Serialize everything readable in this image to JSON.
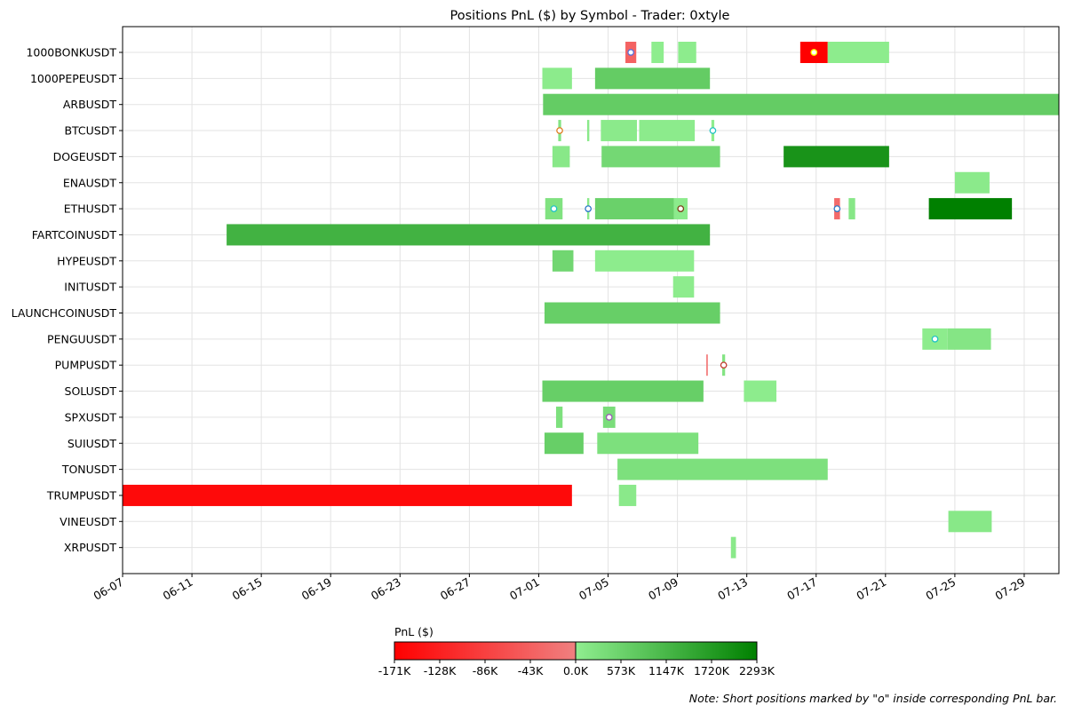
{
  "chart_data": {
    "type": "gantt-heatmap",
    "title": "Positions PnL ($) by Symbol - Trader: 0xtyle",
    "x_axis": {
      "type": "date",
      "range": [
        "2025-06-07",
        "2025-07-31"
      ],
      "tick_labels": [
        "06-07",
        "06-11",
        "06-15",
        "06-19",
        "06-23",
        "06-27",
        "07-01",
        "07-05",
        "07-09",
        "07-13",
        "07-17",
        "07-21",
        "07-25",
        "07-29"
      ],
      "grid": true
    },
    "categories": [
      "1000BONKUSDT",
      "1000PEPEUSDT",
      "ARBUSDT",
      "BTCUSDT",
      "DOGEUSDT",
      "ENAUSDT",
      "ETHUSDT",
      "FARTCOINUSDT",
      "HYPEUSDT",
      "INITUSDT",
      "LAUNCHCOINUSDT",
      "PENGUUSDT",
      "PUMPUSDT",
      "SOLUSDT",
      "SPXUSDT",
      "SUIUSDT",
      "TONUSDT",
      "TRUMPUSDT",
      "VINEUSDT",
      "XRPUSDT"
    ],
    "colorbar": {
      "label": "PnL ($)",
      "tick_labels": [
        "-171K",
        "-128K",
        "-86K",
        "-43K",
        "0.0K",
        "573K",
        "1147K",
        "1720K",
        "2293K"
      ],
      "neg_colors": [
        "#ff0000",
        "#f08080"
      ],
      "pos_colors": [
        "#90ee90",
        "#008000"
      ]
    },
    "positions": [
      {
        "symbol": "1000BONKUSDT",
        "start": "2025-07-06 00:00",
        "end": "2025-07-06 15:00",
        "pnl": -40000,
        "short": true,
        "marker": "#5b6fd6"
      },
      {
        "symbol": "1000BONKUSDT",
        "start": "2025-07-07 12:00",
        "end": "2025-07-08 05:00",
        "pnl": 30000
      },
      {
        "symbol": "1000BONKUSDT",
        "start": "2025-07-09 01:00",
        "end": "2025-07-10 02:00",
        "pnl": 40000
      },
      {
        "symbol": "1000BONKUSDT",
        "start": "2025-07-16 02:00",
        "end": "2025-07-17 16:00",
        "pnl": -171000,
        "short": true,
        "marker": "#ffff00"
      },
      {
        "symbol": "1000BONKUSDT",
        "start": "2025-07-17 16:00",
        "end": "2025-07-21 05:00",
        "pnl": 50000
      },
      {
        "symbol": "1000PEPEUSDT",
        "start": "2025-07-01 05:00",
        "end": "2025-07-02 22:00",
        "pnl": 60000
      },
      {
        "symbol": "1000PEPEUSDT",
        "start": "2025-07-04 06:00",
        "end": "2025-07-10 21:00",
        "pnl": 700000
      },
      {
        "symbol": "ARBUSDT",
        "start": "2025-07-01 06:00",
        "end": "2025-07-31 23:00",
        "pnl": 700000
      },
      {
        "symbol": "BTCUSDT",
        "start": "2025-07-02 03:00",
        "end": "2025-07-02 07:00",
        "pnl": 200000,
        "short": true,
        "marker": "#e07b20"
      },
      {
        "symbol": "BTCUSDT",
        "start": "2025-07-03 19:00",
        "end": "2025-07-03 22:00",
        "pnl": 100000
      },
      {
        "symbol": "BTCUSDT",
        "start": "2025-07-04 14:00",
        "end": "2025-07-06 16:00",
        "pnl": 80000
      },
      {
        "symbol": "BTCUSDT",
        "start": "2025-07-06 19:00",
        "end": "2025-07-10 00:00",
        "pnl": 60000
      },
      {
        "symbol": "BTCUSDT",
        "start": "2025-07-10 23:00",
        "end": "2025-07-11 03:00",
        "pnl": 30000,
        "short": true,
        "marker": "#22c3c3"
      },
      {
        "symbol": "DOGEUSDT",
        "start": "2025-07-01 19:00",
        "end": "2025-07-02 19:00",
        "pnl": 120000
      },
      {
        "symbol": "DOGEUSDT",
        "start": "2025-07-04 15:00",
        "end": "2025-07-11 11:00",
        "pnl": 450000
      },
      {
        "symbol": "DOGEUSDT",
        "start": "2025-07-15 03:00",
        "end": "2025-07-21 05:00",
        "pnl": 1900000
      },
      {
        "symbol": "ENAUSDT",
        "start": "2025-07-25 00:00",
        "end": "2025-07-27 00:00",
        "pnl": 80000
      },
      {
        "symbol": "ETHUSDT",
        "start": "2025-07-01 09:00",
        "end": "2025-07-02 09:00",
        "pnl": 250000,
        "short": true,
        "marker": "#22c3c3"
      },
      {
        "symbol": "ETHUSDT",
        "start": "2025-07-03 19:00",
        "end": "2025-07-03 22:00",
        "pnl": 100000,
        "short": true,
        "marker": "#2a78c8"
      },
      {
        "symbol": "ETHUSDT",
        "start": "2025-07-04 06:00",
        "end": "2025-07-08 19:00",
        "pnl": 600000
      },
      {
        "symbol": "ETHUSDT",
        "start": "2025-07-08 19:00",
        "end": "2025-07-09 14:00",
        "pnl": 60000,
        "short": true,
        "marker": "#7b3f16"
      },
      {
        "symbol": "ETHUSDT",
        "start": "2025-07-18 01:00",
        "end": "2025-07-18 09:00",
        "pnl": -30000,
        "short": true,
        "marker": "#2a78c8"
      },
      {
        "symbol": "ETHUSDT",
        "start": "2025-07-18 21:00",
        "end": "2025-07-19 06:00",
        "pnl": 150000
      },
      {
        "symbol": "ETHUSDT",
        "start": "2025-07-23 12:00",
        "end": "2025-07-28 07:00",
        "pnl": 2293000
      },
      {
        "symbol": "FARTCOINUSDT",
        "start": "2025-06-13 00:00",
        "end": "2025-07-10 21:00",
        "pnl": 1250000
      },
      {
        "symbol": "HYPEUSDT",
        "start": "2025-07-01 19:00",
        "end": "2025-07-03 00:00",
        "pnl": 500000
      },
      {
        "symbol": "HYPEUSDT",
        "start": "2025-07-04 06:00",
        "end": "2025-07-09 23:00",
        "pnl": 40000
      },
      {
        "symbol": "INITUSDT",
        "start": "2025-07-08 18:00",
        "end": "2025-07-09 23:00",
        "pnl": 40000
      },
      {
        "symbol": "LAUNCHCOINUSDT",
        "start": "2025-07-01 08:00",
        "end": "2025-07-11 11:00",
        "pnl": 650000
      },
      {
        "symbol": "PENGUUSDT",
        "start": "2025-07-23 03:00",
        "end": "2025-07-24 14:00",
        "pnl": 50000,
        "short": true,
        "marker": "#22c3c3"
      },
      {
        "symbol": "PENGUUSDT",
        "start": "2025-07-24 14:00",
        "end": "2025-07-27 02:00",
        "pnl": 180000
      },
      {
        "symbol": "PUMPUSDT",
        "start": "2025-07-10 16:00",
        "end": "2025-07-10 18:00",
        "pnl": -20000
      },
      {
        "symbol": "PUMPUSDT",
        "start": "2025-07-11 14:00",
        "end": "2025-07-11 18:00",
        "pnl": 200000,
        "short": true,
        "marker": "#c0392b"
      },
      {
        "symbol": "SOLUSDT",
        "start": "2025-07-01 05:00",
        "end": "2025-07-10 12:00",
        "pnl": 650000
      },
      {
        "symbol": "SOLUSDT",
        "start": "2025-07-12 20:00",
        "end": "2025-07-14 17:00",
        "pnl": 40000
      },
      {
        "symbol": "SPXUSDT",
        "start": "2025-07-02 00:00",
        "end": "2025-07-02 09:00",
        "pnl": 300000
      },
      {
        "symbol": "SPXUSDT",
        "start": "2025-07-04 17:00",
        "end": "2025-07-05 10:00",
        "pnl": 350000,
        "short": true,
        "marker": "#9b59b6"
      },
      {
        "symbol": "SUIUSDT",
        "start": "2025-07-01 08:00",
        "end": "2025-07-03 14:00",
        "pnl": 650000
      },
      {
        "symbol": "SUIUSDT",
        "start": "2025-07-04 09:00",
        "end": "2025-07-10 05:00",
        "pnl": 300000
      },
      {
        "symbol": "TONUSDT",
        "start": "2025-07-05 13:00",
        "end": "2025-07-17 16:00",
        "pnl": 300000
      },
      {
        "symbol": "TRUMPUSDT",
        "start": "2025-06-07 00:00",
        "end": "2025-07-02 22:00",
        "pnl": -158000
      },
      {
        "symbol": "TRUMPUSDT",
        "start": "2025-07-05 15:00",
        "end": "2025-07-06 15:00",
        "pnl": 100000
      },
      {
        "symbol": "VINEUSDT",
        "start": "2025-07-24 15:00",
        "end": "2025-07-27 03:00",
        "pnl": 120000
      },
      {
        "symbol": "XRPUSDT",
        "start": "2025-07-12 02:00",
        "end": "2025-07-12 09:00",
        "pnl": 100000
      }
    ]
  },
  "note": "Note: Short positions marked by \"o\" inside corresponding PnL bar."
}
